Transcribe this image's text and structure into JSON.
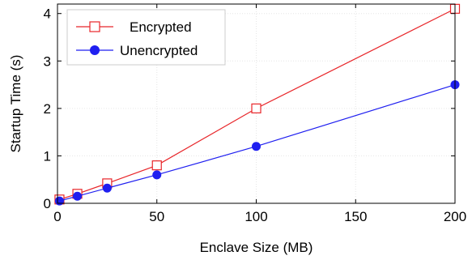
{
  "chart_data": {
    "type": "line",
    "xlabel": "Enclave Size (MB)",
    "ylabel": "Startup Time (s)",
    "xlim": [
      0,
      200
    ],
    "ylim": [
      0,
      4.2
    ],
    "xticks": [
      0,
      50,
      100,
      150,
      200
    ],
    "yticks": [
      0,
      1,
      2,
      3,
      4
    ],
    "grid": true,
    "legend_position": "top-left",
    "series": [
      {
        "name": "Encrypted",
        "color": "#e8262a",
        "marker": "open-square",
        "x": [
          1,
          10,
          25,
          50,
          100,
          200
        ],
        "y": [
          0.08,
          0.2,
          0.42,
          0.8,
          2.0,
          4.1
        ]
      },
      {
        "name": "Unencrypted",
        "color": "#1f1ff0",
        "marker": "filled-circle",
        "x": [
          1,
          10,
          25,
          50,
          100,
          200
        ],
        "y": [
          0.05,
          0.15,
          0.32,
          0.6,
          1.2,
          2.5
        ]
      }
    ]
  }
}
